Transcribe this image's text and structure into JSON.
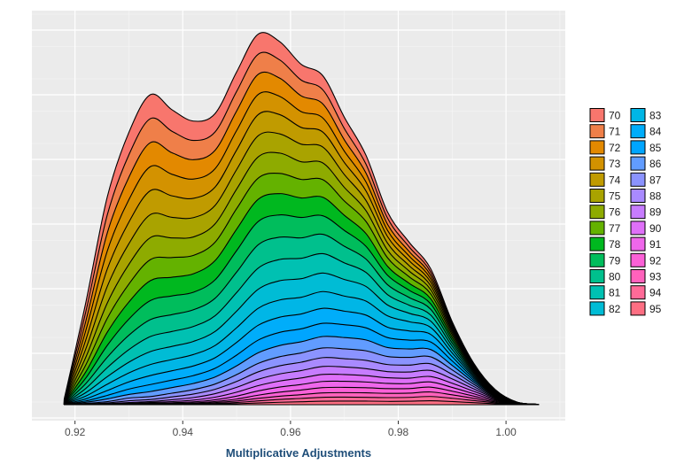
{
  "chart_data": {
    "type": "area",
    "stacked": true,
    "title": "",
    "xlabel": "Multiplicative Adjustments",
    "ylabel": "",
    "xlim": [
      0.912,
      1.011
    ],
    "ylim": [
      0,
      1
    ],
    "grid": true,
    "legend_placement": "right",
    "x_ticks": [
      "0.92",
      "0.94",
      "0.96",
      "0.98",
      "1.00"
    ],
    "x": [
      0.918,
      0.922,
      0.926,
      0.93,
      0.934,
      0.938,
      0.942,
      0.946,
      0.95,
      0.954,
      0.958,
      0.962,
      0.966,
      0.97,
      0.974,
      0.978,
      0.982,
      0.986,
      0.99,
      0.994,
      0.998,
      1.002,
      1.006
    ],
    "total": [
      0.015,
      0.27,
      0.55,
      0.72,
      0.82,
      0.78,
      0.75,
      0.77,
      0.88,
      0.98,
      0.96,
      0.9,
      0.87,
      0.76,
      0.66,
      0.51,
      0.43,
      0.36,
      0.22,
      0.11,
      0.04,
      0.007,
      0.001
    ],
    "series": [
      {
        "name": "70",
        "color": "#F8766D",
        "weights": [
          1.4,
          1.35,
          1.3,
          1.25,
          1.2,
          1.15,
          1.1,
          1.05,
          1.0,
          0.95,
          0.9,
          0.85,
          0.8,
          0.75,
          0.7,
          0.65,
          0.6,
          0.55,
          0.5,
          0.45,
          0.4,
          0.35,
          0.3
        ]
      },
      {
        "name": "71",
        "color": "#EF7F49",
        "weights": [
          1.4,
          1.35,
          1.3,
          1.25,
          1.2,
          1.15,
          1.1,
          1.05,
          1.0,
          0.95,
          0.9,
          0.85,
          0.8,
          0.75,
          0.7,
          0.65,
          0.6,
          0.55,
          0.5,
          0.45,
          0.4,
          0.35,
          0.3
        ]
      },
      {
        "name": "72",
        "color": "#E38900",
        "weights": [
          1.4,
          1.35,
          1.3,
          1.25,
          1.2,
          1.15,
          1.1,
          1.05,
          1.0,
          0.95,
          0.9,
          0.85,
          0.8,
          0.75,
          0.7,
          0.65,
          0.6,
          0.55,
          0.5,
          0.45,
          0.4,
          0.35,
          0.3
        ]
      },
      {
        "name": "73",
        "color": "#D39200",
        "weights": [
          1.4,
          1.35,
          1.3,
          1.25,
          1.2,
          1.15,
          1.1,
          1.05,
          1.0,
          0.95,
          0.9,
          0.85,
          0.8,
          0.75,
          0.7,
          0.65,
          0.6,
          0.55,
          0.5,
          0.45,
          0.4,
          0.35,
          0.3
        ]
      },
      {
        "name": "74",
        "color": "#C09B00",
        "weights": [
          1.3,
          1.3,
          1.25,
          1.2,
          1.2,
          1.15,
          1.1,
          1.05,
          1.0,
          1.0,
          0.95,
          0.9,
          0.85,
          0.8,
          0.75,
          0.7,
          0.65,
          0.6,
          0.55,
          0.5,
          0.45,
          0.4,
          0.35
        ]
      },
      {
        "name": "75",
        "color": "#A9A300",
        "weights": [
          1.2,
          1.2,
          1.2,
          1.15,
          1.15,
          1.1,
          1.1,
          1.05,
          1.0,
          1.0,
          0.95,
          0.95,
          0.9,
          0.85,
          0.8,
          0.75,
          0.7,
          0.65,
          0.6,
          0.55,
          0.5,
          0.45,
          0.4
        ]
      },
      {
        "name": "76",
        "color": "#8EAB00",
        "weights": [
          1.1,
          1.1,
          1.1,
          1.1,
          1.1,
          1.05,
          1.05,
          1.05,
          1.0,
          1.0,
          1.0,
          0.95,
          0.95,
          0.9,
          0.85,
          0.8,
          0.75,
          0.7,
          0.65,
          0.6,
          0.55,
          0.5,
          0.45
        ]
      },
      {
        "name": "77",
        "color": "#64B200",
        "weights": [
          1.0,
          1.0,
          1.0,
          1.0,
          1.05,
          1.05,
          1.05,
          1.05,
          1.05,
          1.0,
          1.0,
          1.0,
          1.0,
          0.95,
          0.95,
          0.9,
          0.85,
          0.8,
          0.75,
          0.7,
          0.65,
          0.6,
          0.55
        ]
      },
      {
        "name": "78",
        "color": "#00B81F",
        "weights": [
          0.9,
          0.9,
          0.95,
          0.95,
          1.0,
          1.0,
          1.05,
          1.1,
          1.1,
          1.05,
          1.05,
          1.05,
          1.05,
          1.0,
          1.0,
          0.95,
          0.9,
          0.85,
          0.8,
          0.75,
          0.7,
          0.65,
          0.6
        ]
      },
      {
        "name": "79",
        "color": "#00BD5C",
        "weights": [
          0.8,
          0.8,
          0.85,
          0.9,
          0.95,
          1.0,
          1.0,
          1.05,
          1.1,
          1.1,
          1.1,
          1.1,
          1.05,
          1.05,
          1.0,
          1.0,
          0.95,
          0.9,
          0.85,
          0.8,
          0.75,
          0.7,
          0.65
        ]
      },
      {
        "name": "80",
        "color": "#00C08D",
        "weights": [
          0.7,
          0.7,
          0.75,
          0.8,
          0.85,
          0.9,
          0.95,
          1.0,
          1.05,
          1.1,
          1.1,
          1.1,
          1.1,
          1.1,
          1.05,
          1.05,
          1.0,
          0.95,
          0.9,
          0.85,
          0.8,
          0.75,
          0.7
        ]
      },
      {
        "name": "81",
        "color": "#00C1B2",
        "weights": [
          0.6,
          0.6,
          0.65,
          0.7,
          0.75,
          0.8,
          0.85,
          0.9,
          0.95,
          1.0,
          1.05,
          1.1,
          1.1,
          1.1,
          1.1,
          1.1,
          1.05,
          1.0,
          0.95,
          0.9,
          0.85,
          0.8,
          0.75
        ]
      },
      {
        "name": "82",
        "color": "#00BCD5",
        "weights": [
          0.5,
          0.5,
          0.55,
          0.6,
          0.65,
          0.7,
          0.75,
          0.8,
          0.85,
          0.9,
          0.95,
          1.0,
          1.05,
          1.1,
          1.15,
          1.15,
          1.1,
          1.05,
          1.0,
          0.95,
          0.9,
          0.85,
          0.8
        ]
      },
      {
        "name": "83",
        "color": "#00B6E6",
        "weights": [
          0.4,
          0.4,
          0.45,
          0.5,
          0.55,
          0.6,
          0.65,
          0.7,
          0.75,
          0.8,
          0.85,
          0.9,
          0.95,
          1.0,
          1.1,
          1.2,
          1.2,
          1.15,
          1.1,
          1.0,
          0.95,
          0.9,
          0.85
        ]
      },
      {
        "name": "84",
        "color": "#00ADFA",
        "weights": [
          0.3,
          0.3,
          0.35,
          0.4,
          0.45,
          0.5,
          0.55,
          0.6,
          0.65,
          0.7,
          0.75,
          0.8,
          0.85,
          0.9,
          1.0,
          1.1,
          1.2,
          1.25,
          1.2,
          1.1,
          1.0,
          0.95,
          0.9
        ]
      },
      {
        "name": "85",
        "color": "#00A5FF",
        "weights": [
          0.2,
          0.2,
          0.25,
          0.3,
          0.35,
          0.4,
          0.45,
          0.5,
          0.55,
          0.6,
          0.65,
          0.7,
          0.75,
          0.85,
          0.95,
          1.05,
          1.15,
          1.25,
          1.3,
          1.2,
          1.1,
          1.0,
          0.95
        ]
      },
      {
        "name": "86",
        "color": "#619CFF",
        "weights": [
          0.15,
          0.15,
          0.2,
          0.2,
          0.25,
          0.3,
          0.35,
          0.4,
          0.45,
          0.5,
          0.55,
          0.6,
          0.65,
          0.75,
          0.85,
          0.95,
          1.1,
          1.2,
          1.3,
          1.3,
          1.2,
          1.1,
          1.0
        ]
      },
      {
        "name": "87",
        "color": "#8B93FF",
        "weights": [
          0.1,
          0.1,
          0.1,
          0.15,
          0.15,
          0.2,
          0.25,
          0.3,
          0.35,
          0.4,
          0.45,
          0.5,
          0.55,
          0.65,
          0.75,
          0.85,
          1.0,
          1.15,
          1.3,
          1.4,
          1.3,
          1.2,
          1.1
        ]
      },
      {
        "name": "88",
        "color": "#A98AFF",
        "weights": [
          0.05,
          0.05,
          0.05,
          0.1,
          0.1,
          0.15,
          0.2,
          0.25,
          0.3,
          0.35,
          0.4,
          0.45,
          0.5,
          0.55,
          0.65,
          0.75,
          0.9,
          1.1,
          1.3,
          1.45,
          1.4,
          1.3,
          1.2
        ]
      },
      {
        "name": "89",
        "color": "#C77CFF",
        "weights": [
          0.02,
          0.02,
          0.03,
          0.05,
          0.05,
          0.1,
          0.15,
          0.2,
          0.25,
          0.3,
          0.35,
          0.4,
          0.45,
          0.5,
          0.55,
          0.65,
          0.8,
          1.0,
          1.25,
          1.5,
          1.5,
          1.4,
          1.3
        ]
      },
      {
        "name": "90",
        "color": "#DF70F8",
        "weights": [
          0.01,
          0.01,
          0.02,
          0.03,
          0.04,
          0.06,
          0.1,
          0.15,
          0.2,
          0.25,
          0.3,
          0.35,
          0.4,
          0.45,
          0.5,
          0.6,
          0.7,
          0.9,
          1.2,
          1.5,
          1.55,
          1.5,
          1.4
        ]
      },
      {
        "name": "91",
        "color": "#EF67EB",
        "weights": [
          0.005,
          0.005,
          0.01,
          0.02,
          0.03,
          0.04,
          0.06,
          0.1,
          0.15,
          0.2,
          0.25,
          0.3,
          0.35,
          0.4,
          0.45,
          0.55,
          0.65,
          0.85,
          1.1,
          1.45,
          1.6,
          1.6,
          1.5
        ]
      },
      {
        "name": "92",
        "color": "#FB61D7",
        "weights": [
          0.003,
          0.003,
          0.005,
          0.01,
          0.02,
          0.03,
          0.04,
          0.06,
          0.1,
          0.15,
          0.2,
          0.25,
          0.3,
          0.35,
          0.4,
          0.5,
          0.6,
          0.8,
          1.05,
          1.4,
          1.6,
          1.65,
          1.6
        ]
      },
      {
        "name": "93",
        "color": "#FF62BC",
        "weights": [
          0.002,
          0.002,
          0.003,
          0.005,
          0.01,
          0.02,
          0.03,
          0.05,
          0.08,
          0.12,
          0.16,
          0.2,
          0.25,
          0.3,
          0.35,
          0.45,
          0.55,
          0.75,
          1.0,
          1.35,
          1.6,
          1.7,
          1.7
        ]
      },
      {
        "name": "94",
        "color": "#FF6A98",
        "weights": [
          0.001,
          0.001,
          0.002,
          0.003,
          0.005,
          0.01,
          0.02,
          0.04,
          0.06,
          0.1,
          0.14,
          0.18,
          0.22,
          0.26,
          0.3,
          0.4,
          0.5,
          0.7,
          0.95,
          1.3,
          1.6,
          1.75,
          1.8
        ]
      },
      {
        "name": "95",
        "color": "#FD6F83",
        "weights": [
          0.001,
          0.001,
          0.001,
          0.002,
          0.003,
          0.005,
          0.01,
          0.03,
          0.05,
          0.08,
          0.12,
          0.16,
          0.2,
          0.24,
          0.28,
          0.35,
          0.45,
          0.65,
          0.9,
          1.25,
          1.6,
          1.8,
          1.9
        ]
      }
    ]
  }
}
